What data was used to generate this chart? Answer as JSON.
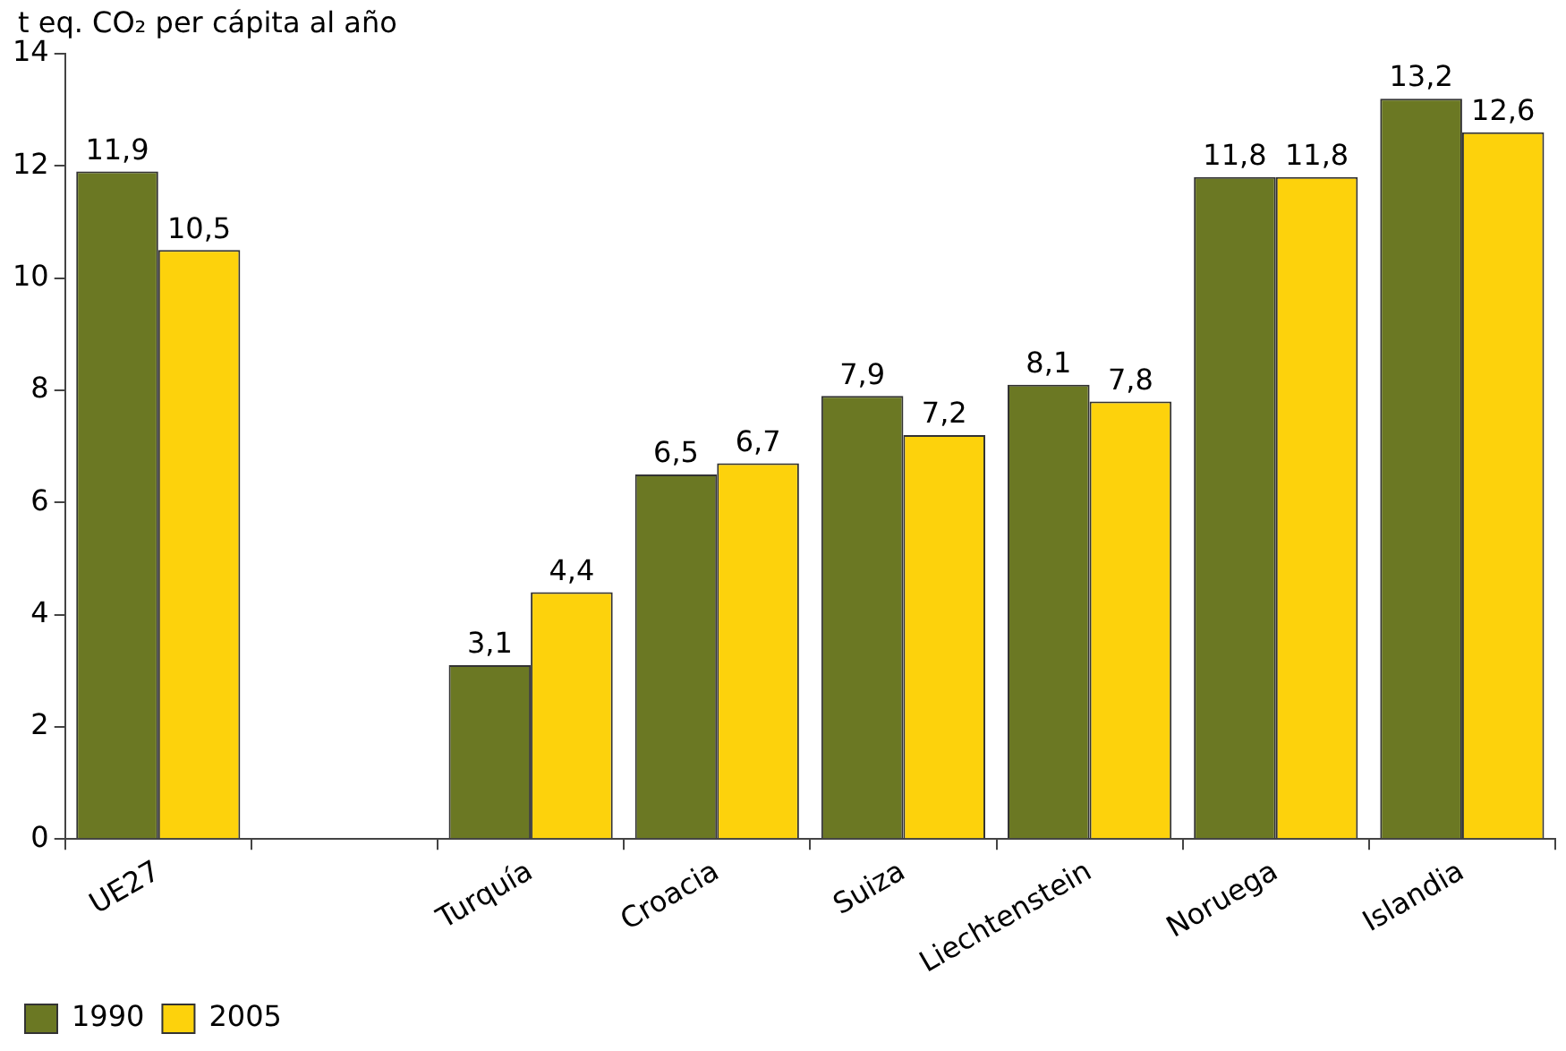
{
  "chart_data": {
    "type": "bar",
    "ylabel": "t eq. CO₂ per cápita al año",
    "categories": [
      "UE27",
      null,
      "Turquía",
      "Croacia",
      "Suiza",
      "Liechtenstein",
      "Noruega",
      "Islandia"
    ],
    "series": [
      {
        "name": "1990",
        "color": "#6b7823",
        "values": [
          11.9,
          null,
          3.1,
          6.5,
          7.9,
          8.1,
          11.8,
          13.2
        ],
        "value_labels": [
          "11,9",
          null,
          "3,1",
          "6,5",
          "7,9",
          "8,1",
          "11,8",
          "13,2"
        ]
      },
      {
        "name": "2005",
        "color": "#fdd20c",
        "values": [
          10.5,
          null,
          4.4,
          6.7,
          7.2,
          7.8,
          11.8,
          12.6
        ],
        "value_labels": [
          "10,5",
          null,
          "4,4",
          "6,7",
          "7,2",
          "7,8",
          "11,8",
          "12,6"
        ]
      }
    ],
    "ylim": [
      0,
      14
    ],
    "yticks": [
      0,
      2,
      4,
      6,
      8,
      10,
      12,
      14
    ],
    "grid": false,
    "legend": "bottom left"
  }
}
